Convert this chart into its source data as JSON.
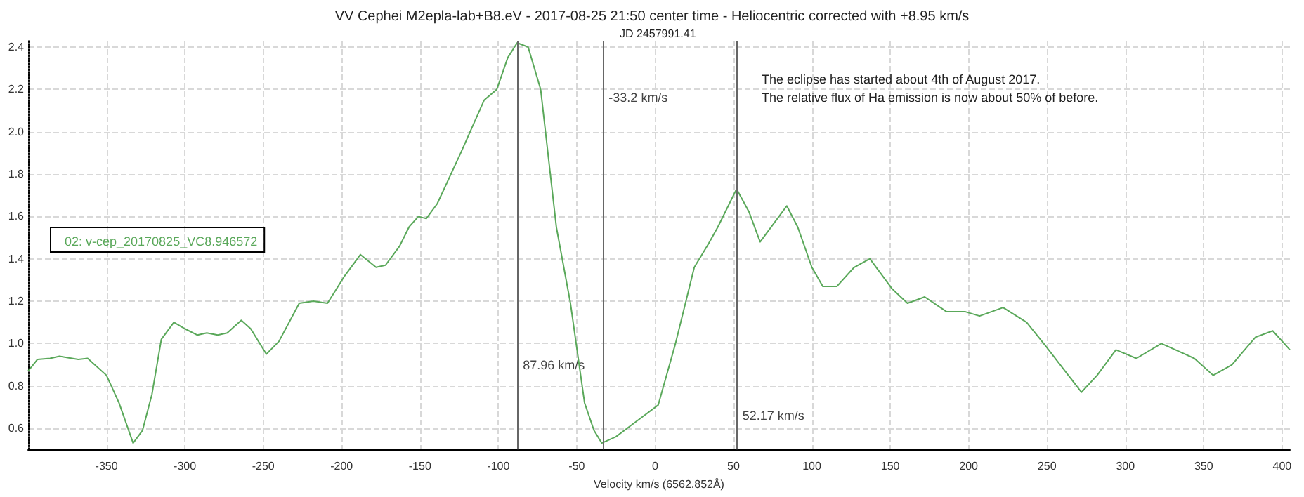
{
  "chart_data": {
    "type": "line",
    "title": "VV Cephei M2epla-lab+B8.eV - 2017-08-25 21:50 center time - Heliocentric corrected with +8.95 km/s",
    "subtitle": "JD 2457991.41",
    "xlabel": "Velocity km/s (6562.852Å)",
    "x": [
      -400,
      -394,
      -386,
      -380,
      -368,
      -362,
      -350,
      -342,
      -333,
      -327,
      -321,
      -315,
      -307,
      -300,
      -292,
      -286,
      -279,
      -273,
      -264,
      -258,
      -248,
      -240,
      -227,
      -218,
      -209,
      -198,
      -188,
      -178,
      -172,
      -163,
      -157,
      -151,
      -146,
      -139,
      -124,
      -109,
      -101,
      -94,
      -88,
      -81,
      -73,
      -63,
      -54,
      -45,
      -39,
      -34,
      -25,
      -16,
      -7,
      2,
      13,
      25,
      34,
      40,
      52,
      60,
      67,
      84,
      91,
      100,
      107,
      116,
      127,
      137,
      151,
      161,
      172,
      186,
      198,
      207,
      222,
      237,
      249,
      272,
      282,
      294,
      307,
      323,
      344,
      356,
      368,
      383,
      394,
      405
    ],
    "series": [
      {
        "name": "02: v-cep_20170825_VC8.946572",
        "color": "#5aa85a",
        "values": [
          0.87,
          0.925,
          0.93,
          0.94,
          0.925,
          0.93,
          0.85,
          0.72,
          0.53,
          0.59,
          0.76,
          1.02,
          1.1,
          1.07,
          1.04,
          1.05,
          1.04,
          1.05,
          1.11,
          1.07,
          0.95,
          1.01,
          1.19,
          1.2,
          1.19,
          1.32,
          1.42,
          1.36,
          1.37,
          1.46,
          1.55,
          1.6,
          1.59,
          1.66,
          1.9,
          2.15,
          2.2,
          2.35,
          2.42,
          2.4,
          2.2,
          1.55,
          1.19,
          0.72,
          0.59,
          0.53,
          0.56,
          0.61,
          0.66,
          0.71,
          1.0,
          1.36,
          1.47,
          1.55,
          1.73,
          1.62,
          1.48,
          1.65,
          1.55,
          1.36,
          1.27,
          1.27,
          1.36,
          1.4,
          1.26,
          1.19,
          1.22,
          1.15,
          1.15,
          1.13,
          1.17,
          1.1,
          0.99,
          0.77,
          0.85,
          0.97,
          0.93,
          1.0,
          0.93,
          0.85,
          0.9,
          1.03,
          1.06,
          0.97
        ]
      }
    ],
    "xlim": [
      -400,
      405
    ],
    "ylim": [
      0.5,
      2.43
    ],
    "xticks": [
      -350,
      -300,
      -250,
      -200,
      -150,
      -100,
      -50,
      0,
      50,
      100,
      150,
      200,
      250,
      300,
      350,
      400
    ],
    "yticks": [
      0.6,
      0.8,
      {
        "value": 1,
        "label": "1.0"
      },
      1.2,
      1.4,
      1.6,
      1.8,
      {
        "value": 2,
        "label": "2.0"
      },
      2.2,
      2.4
    ],
    "ref_lines": [
      {
        "axis": "x",
        "value": -87.96,
        "color": "#666666"
      },
      {
        "axis": "x",
        "value": -33.2,
        "color": "#666666"
      },
      {
        "axis": "x",
        "value": 52.17,
        "color": "#666666"
      }
    ],
    "annotations": [
      "The eclipse has started about 4th of August 2017.",
      "The relative flux of Ha emission is now about 50% of before.",
      {
        "text": "87.96 km/s",
        "x": -87.96,
        "y": 0.9
      },
      {
        "text": "-33.2 km/s",
        "x": -33.2,
        "y": 2.16
      },
      {
        "text": "52.17 km/s",
        "x": 52.17,
        "y": 0.66
      }
    ],
    "grid": true,
    "legend": "left",
    "marker": "none",
    "line_style": "solid"
  }
}
